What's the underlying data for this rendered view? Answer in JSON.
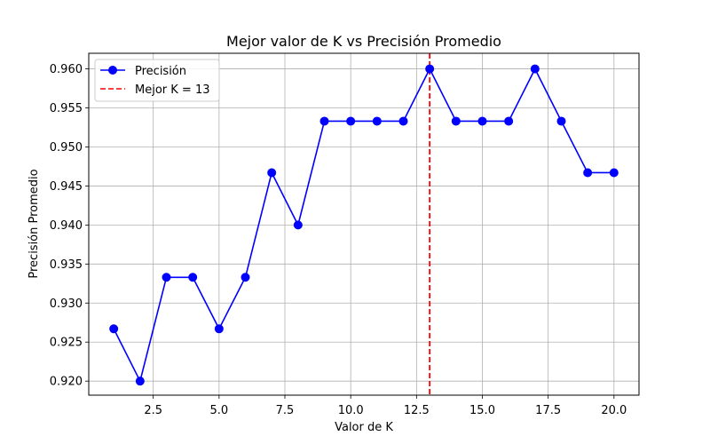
{
  "chart_data": {
    "type": "line",
    "title": "Mejor valor de K vs Precisión Promedio",
    "xlabel": "Valor de K",
    "ylabel": "Precisión Promedio",
    "xlim": [
      0.05,
      20.95
    ],
    "ylim": [
      0.9182,
      0.962
    ],
    "xticks": [
      2.5,
      5.0,
      7.5,
      10.0,
      12.5,
      15.0,
      17.5,
      20.0
    ],
    "xtick_labels": [
      "2.5",
      "5.0",
      "7.5",
      "10.0",
      "12.5",
      "15.0",
      "17.5",
      "20.0"
    ],
    "yticks": [
      0.92,
      0.925,
      0.93,
      0.935,
      0.94,
      0.945,
      0.95,
      0.955,
      0.96
    ],
    "ytick_labels": [
      "0.920",
      "0.925",
      "0.930",
      "0.935",
      "0.940",
      "0.945",
      "0.950",
      "0.955",
      "0.960"
    ],
    "grid": true,
    "legend_position": "top-left",
    "series": [
      {
        "name": "Precisión",
        "color": "#0000ff",
        "marker": "circle",
        "x": [
          1,
          2,
          3,
          4,
          5,
          6,
          7,
          8,
          9,
          10,
          11,
          12,
          13,
          14,
          15,
          16,
          17,
          18,
          19,
          20
        ],
        "y": [
          0.9267,
          0.92,
          0.9333,
          0.9333,
          0.9267,
          0.9333,
          0.9467,
          0.94,
          0.9533,
          0.9533,
          0.9533,
          0.9533,
          0.96,
          0.9533,
          0.9533,
          0.9533,
          0.96,
          0.9533,
          0.9467,
          0.9467
        ]
      }
    ],
    "vline": {
      "name": "Mejor K = 13",
      "x": 13,
      "color": "#ff0000",
      "style": "dashed"
    }
  }
}
